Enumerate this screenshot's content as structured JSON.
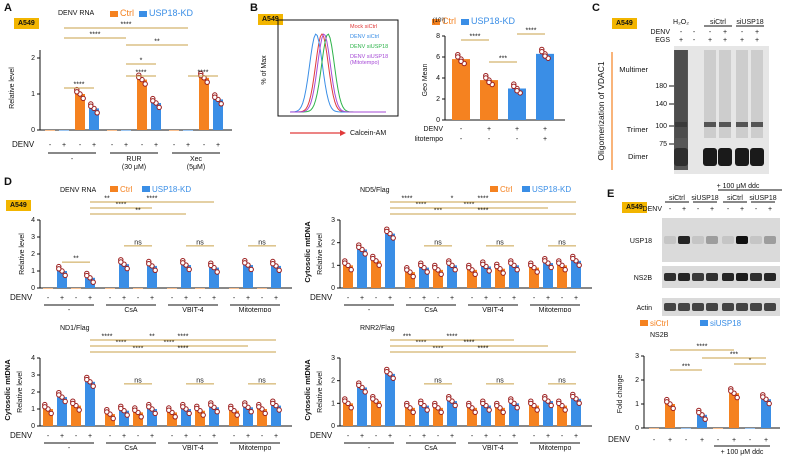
{
  "figure": {
    "colors": {
      "ctrl": "#f58220",
      "kd": "#3a8ee6",
      "star": "#b5651d",
      "badge": "#f2b500",
      "sig": "#c9a24a",
      "dot": "#9b1c1c"
    },
    "cell_line": "A549",
    "panel_a": {
      "label": "A",
      "title": "DENV RNA",
      "legend": [
        "Ctrl",
        "USP18-KD"
      ],
      "ylabel": "Relative level",
      "denv_label": "DENV",
      "signs": [
        "-",
        "+",
        "-",
        "+",
        "-",
        "+",
        "-",
        "+"
      ],
      "groups": [
        "-",
        "RUR (30 μM)",
        "Xec (5μM)"
      ],
      "sig": [
        "****",
        "****",
        "**",
        "****",
        "*",
        "****",
        "****"
      ]
    },
    "panel_b": {
      "label": "B",
      "flow_legend": [
        "Mock siCtrl",
        "DENV siCtrl",
        "DENV siUSP18",
        "DENV siUSP18 (Mitotempo)"
      ],
      "flow_ylabel": "% of Max",
      "flow_xlabel": "Calcein-AM",
      "legend": [
        "Ctrl",
        "USP18-KD"
      ],
      "ylabel": "Geo Mean",
      "exponent": "(10³)",
      "rows": [
        {
          "name": "DENV",
          "signs": [
            "-",
            "+",
            "+",
            "+"
          ]
        },
        {
          "name": "Mitotempo",
          "signs": [
            "-",
            "-",
            "-",
            "+"
          ]
        }
      ],
      "sig": [
        "****",
        "***",
        "****"
      ]
    },
    "panel_c": {
      "label": "C",
      "headers": [
        "H₂O₂",
        "siCtrl",
        "siUSP18"
      ],
      "rows": [
        {
          "name": "DENV",
          "signs": [
            "-",
            "-",
            "-",
            "+",
            "-",
            "+"
          ]
        },
        {
          "name": "EGS",
          "signs": [
            "+",
            "-",
            "+",
            "+",
            "+",
            "+"
          ]
        }
      ],
      "markers": [
        "180",
        "140",
        "100",
        "75"
      ],
      "bands": [
        "Multimer",
        "Trimer",
        "Dimer"
      ],
      "side_label": "Oligomerization of VDAC1"
    },
    "panel_d": {
      "label": "D",
      "subpanels": [
        {
          "title": "DENV RNA",
          "ylabel": "Relative level",
          "side": "",
          "legend": [
            "Ctrl",
            "USP18-KD"
          ],
          "yticks": [
            "0",
            "1",
            "2",
            "3",
            "4"
          ],
          "groups": [
            "-",
            "CsA",
            "VBIT-4",
            "Mitotempo"
          ],
          "top_sig": [
            "**",
            "****",
            "**",
            "****"
          ],
          "ns": [
            "ns",
            "ns",
            "ns"
          ],
          "means": [
            0,
            1.0,
            0,
            0.6,
            0,
            1.4,
            0,
            1.3,
            0,
            1.35,
            0,
            1.2,
            0,
            1.35,
            0,
            1.3
          ],
          "pair_sig": "**"
        },
        {
          "title": "ND5/Flag",
          "ylabel": "Relative level",
          "side": "Cytosolic mtDNA",
          "legend": [
            "Ctrl",
            "USP18-KD"
          ],
          "yticks": [
            "0",
            "1",
            "2",
            "3"
          ],
          "groups": [
            "-",
            "CsA",
            "VBIT-4",
            "Mitotempo"
          ],
          "top_sig": [
            "****",
            "****",
            "***",
            "*",
            "****",
            "****",
            "****"
          ],
          "ns": [
            "ns",
            "ns",
            "ns"
          ],
          "means": [
            1.0,
            1.7,
            1.2,
            2.4,
            0.7,
            0.9,
            0.8,
            1.0,
            0.8,
            0.95,
            0.85,
            1.0,
            0.9,
            1.1,
            1.0,
            1.2
          ],
          "pair_sig": ""
        },
        {
          "title": "ND1/Flag",
          "ylabel": "Relative level",
          "side": "Cytosolic mtDNA",
          "legend": [],
          "yticks": [
            "0",
            "1",
            "2",
            "3",
            "4"
          ],
          "groups": [
            "-",
            "CsA",
            "VBIT-4",
            "Mitotempo"
          ],
          "top_sig": [
            "****",
            "****",
            "****",
            "**",
            "****",
            "****",
            "****"
          ],
          "ns": [
            "ns",
            "ns",
            "ns"
          ],
          "means": [
            1.0,
            1.7,
            1.2,
            2.6,
            0.7,
            0.9,
            0.8,
            1.0,
            0.8,
            1.0,
            0.9,
            1.1,
            0.9,
            1.1,
            1.0,
            1.2
          ],
          "pair_sig": ""
        },
        {
          "title": "RNR2/Flag",
          "ylabel": "Relative level",
          "side": "Cytosolic mtDNA",
          "legend": [],
          "yticks": [
            "0",
            "1",
            "2",
            "3"
          ],
          "groups": [
            "-",
            "CsA",
            "VBIT-4",
            "Mitotempo"
          ],
          "top_sig": [
            "***",
            "****",
            "****",
            "****",
            "****",
            "****"
          ],
          "ns": [
            "ns",
            "ns",
            "ns"
          ],
          "means": [
            1.0,
            1.7,
            1.1,
            2.3,
            0.8,
            0.9,
            0.8,
            1.1,
            0.8,
            0.9,
            0.8,
            1.0,
            0.9,
            1.1,
            0.9,
            1.2
          ],
          "pair_sig": ""
        }
      ],
      "denv_label": "DENV",
      "signs": [
        "-",
        "+",
        "-",
        "+",
        "-",
        "+",
        "-",
        "+",
        "-",
        "+",
        "-",
        "+",
        "-",
        "+",
        "-",
        "+"
      ]
    },
    "panel_e": {
      "label": "E",
      "treatment": "+ 100 μM ddc",
      "headers": [
        "siCtrl",
        "siUSP18",
        "siCtrl",
        "siUSP18"
      ],
      "denv_label": "DENV",
      "denv_signs": [
        "-",
        "+",
        "-",
        "+",
        "-",
        "+",
        "-",
        "+"
      ],
      "blots": [
        "USP18",
        "NS2B",
        "Actin"
      ],
      "legend": [
        "siCtrl",
        "siUSP18"
      ],
      "chart_title": "NS2B",
      "ylabel": "Fold change",
      "yticks": [
        "0",
        "1",
        "2",
        "3"
      ],
      "sig": [
        "****",
        "***",
        "*",
        "***"
      ],
      "footer": "+ 100 μM ddc"
    }
  },
  "chart_data": [
    {
      "type": "bar",
      "title": "DENV RNA",
      "ylabel": "Relative level",
      "ylim": [
        0,
        2.5
      ],
      "categories": [
        "-/-",
        "-/+",
        "RUR/-",
        "RUR/+",
        "Xec/-",
        "Xec/+"
      ],
      "series": [
        {
          "name": "Ctrl",
          "values": [
            0,
            1.0,
            0,
            1.4,
            0,
            1.45
          ]
        },
        {
          "name": "USP18-KD",
          "values": [
            0,
            0.6,
            0,
            0.75,
            0,
            0.85
          ]
        }
      ],
      "yticks": [
        "0",
        "1",
        "2"
      ]
    },
    {
      "type": "bar",
      "title": "Geo Mean",
      "ylabel": "Geo Mean (10³)",
      "ylim": [
        0,
        8
      ],
      "categories": [
        "mock",
        "DENV",
        "DENV+KD",
        "DENV+KD+Mitotempo"
      ],
      "values": [
        5.8,
        3.8,
        3.0,
        6.3
      ],
      "yticks": [
        "0",
        "2",
        "4",
        "6",
        "8"
      ]
    },
    {
      "type": "bar",
      "title": "NS2B",
      "ylabel": "Fold change",
      "ylim": [
        0,
        3
      ],
      "categories": [
        "siCtrl-",
        "siCtrl+",
        "siUSP18-",
        "siUSP18+",
        "ddc siCtrl-",
        "ddc siCtrl+",
        "ddc siUSP18-",
        "ddc siUSP18+"
      ],
      "values": [
        0,
        1.0,
        0,
        0.55,
        0,
        1.45,
        0,
        1.2
      ],
      "yticks": [
        "0",
        "1",
        "2",
        "3"
      ]
    }
  ]
}
